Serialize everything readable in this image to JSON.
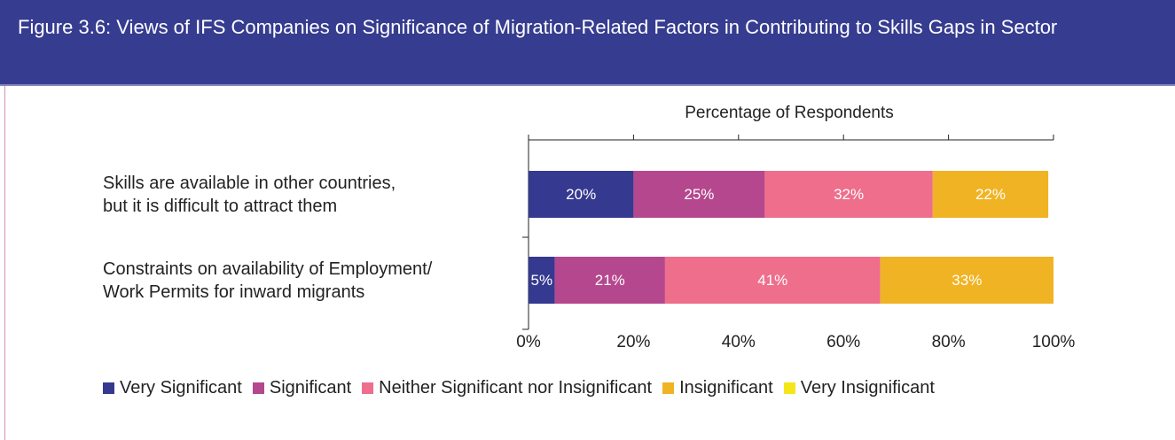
{
  "chart_data": {
    "type": "stacked_bar_horizontal",
    "title": "Figure 3.6: Views of IFS Companies on Significance of Migration-Related Factors in Contributing to Skills Gaps in Sector",
    "xlabel": "Percentage of Respondents",
    "categories": [
      "Skills are available in other countries,\nbut it is difficult to attract them",
      "Constraints on availability of Employment/\nWork Permits for inward migrants"
    ],
    "series": [
      {
        "name": "Very Significant",
        "color": "#35398f",
        "values": [
          20,
          5
        ],
        "value_labels": [
          "20%",
          "5%"
        ]
      },
      {
        "name": "Significant",
        "color": "#b5478e",
        "values": [
          25,
          21
        ],
        "value_labels": [
          "25%",
          "21%"
        ]
      },
      {
        "name": "Neither Significant nor Insignificant",
        "color": "#ee6e8c",
        "values": [
          32,
          41
        ],
        "value_labels": [
          "32%",
          "41%"
        ]
      },
      {
        "name": "Insignificant",
        "color": "#f0b323",
        "values": [
          22,
          33
        ],
        "value_labels": [
          "22%",
          "33%"
        ]
      },
      {
        "name": "Very Insignificant",
        "color": "#f5e61a",
        "values": [
          0,
          0
        ]
      }
    ],
    "xlim": [
      0,
      100
    ],
    "xticks": [
      {
        "value": 0,
        "label": "0%"
      },
      {
        "value": 20,
        "label": "20%"
      },
      {
        "value": 40,
        "label": "40%"
      },
      {
        "value": 60,
        "label": "60%"
      },
      {
        "value": 80,
        "label": "80%"
      },
      {
        "value": 100,
        "label": "100%"
      }
    ],
    "legend": "bottom"
  }
}
